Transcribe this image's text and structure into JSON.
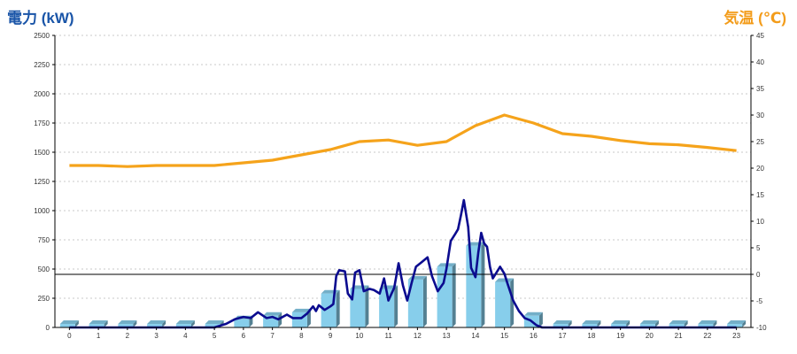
{
  "chart_data": {
    "type": "bar",
    "left_axis_title": "電力 (kW)",
    "right_axis_title": "気温 (℃)",
    "ylim_left": [
      0,
      2500
    ],
    "y_ticks_left": [
      0,
      250,
      500,
      750,
      1000,
      1250,
      1500,
      1750,
      2000,
      2250,
      2500
    ],
    "ylim_right": [
      -10,
      45
    ],
    "y_ticks_right": [
      -10,
      -5,
      0,
      5,
      10,
      15,
      20,
      25,
      30,
      35,
      40,
      45
    ],
    "categories": [
      "0",
      "1",
      "2",
      "3",
      "4",
      "5",
      "6",
      "7",
      "8",
      "9",
      "10",
      "11",
      "12",
      "13",
      "14",
      "15",
      "16",
      "17",
      "18",
      "19",
      "20",
      "21",
      "22",
      "23"
    ],
    "grid": true,
    "colors": {
      "bars": "#87ceeb",
      "power_line": "#0b0b8f",
      "temperature_line": "#f5a31b",
      "left_title": "#1a55a8",
      "right_title": "#f39c1a"
    },
    "series": [
      {
        "kind": "bar",
        "axis": "left",
        "values": [
          30,
          30,
          30,
          30,
          30,
          30,
          70,
          100,
          130,
          290,
          330,
          330,
          410,
          520,
          700,
          390,
          100,
          30,
          30,
          30,
          30,
          30,
          30,
          30
        ]
      },
      {
        "kind": "line",
        "axis": "left",
        "x": [
          0,
          5,
          5.4,
          5.7,
          6.0,
          6.25,
          6.5,
          6.8,
          7.0,
          7.2,
          7.5,
          7.7,
          8.0,
          8.2,
          8.4,
          8.5,
          8.6,
          8.8,
          9.0,
          9.1,
          9.2,
          9.3,
          9.5,
          9.6,
          9.75,
          9.85,
          10.0,
          10.15,
          10.35,
          10.5,
          10.7,
          10.85,
          11.0,
          11.2,
          11.35,
          11.5,
          11.65,
          11.8,
          11.95,
          12.15,
          12.35,
          12.5,
          12.7,
          12.9,
          13.0,
          13.15,
          13.3,
          13.4,
          13.5,
          13.6,
          13.75,
          13.85,
          14.0,
          14.1,
          14.2,
          14.3,
          14.4,
          14.5,
          14.6,
          14.7,
          14.85,
          15.0,
          15.1,
          15.3,
          15.5,
          15.7,
          15.9,
          16.1,
          16.3,
          17,
          23
        ],
        "values": [
          0,
          0,
          30,
          70,
          90,
          80,
          130,
          80,
          90,
          70,
          110,
          80,
          80,
          120,
          180,
          140,
          190,
          150,
          180,
          200,
          440,
          490,
          480,
          290,
          240,
          470,
          490,
          310,
          330,
          320,
          290,
          420,
          230,
          340,
          550,
          360,
          230,
          380,
          520,
          560,
          600,
          440,
          310,
          380,
          500,
          740,
          800,
          840,
          960,
          1090,
          860,
          510,
          430,
          640,
          810,
          720,
          690,
          520,
          420,
          460,
          520,
          460,
          380,
          230,
          140,
          80,
          60,
          20,
          0,
          0,
          0
        ]
      },
      {
        "kind": "line",
        "axis": "right",
        "values": [
          20.5,
          20.5,
          20.3,
          20.5,
          20.5,
          20.5,
          21.0,
          21.5,
          22.5,
          23.5,
          25.0,
          25.3,
          24.3,
          25.0,
          28.0,
          30.0,
          28.5,
          26.5,
          26.0,
          25.2,
          24.6,
          24.4,
          23.9,
          23.3
        ]
      }
    ]
  }
}
